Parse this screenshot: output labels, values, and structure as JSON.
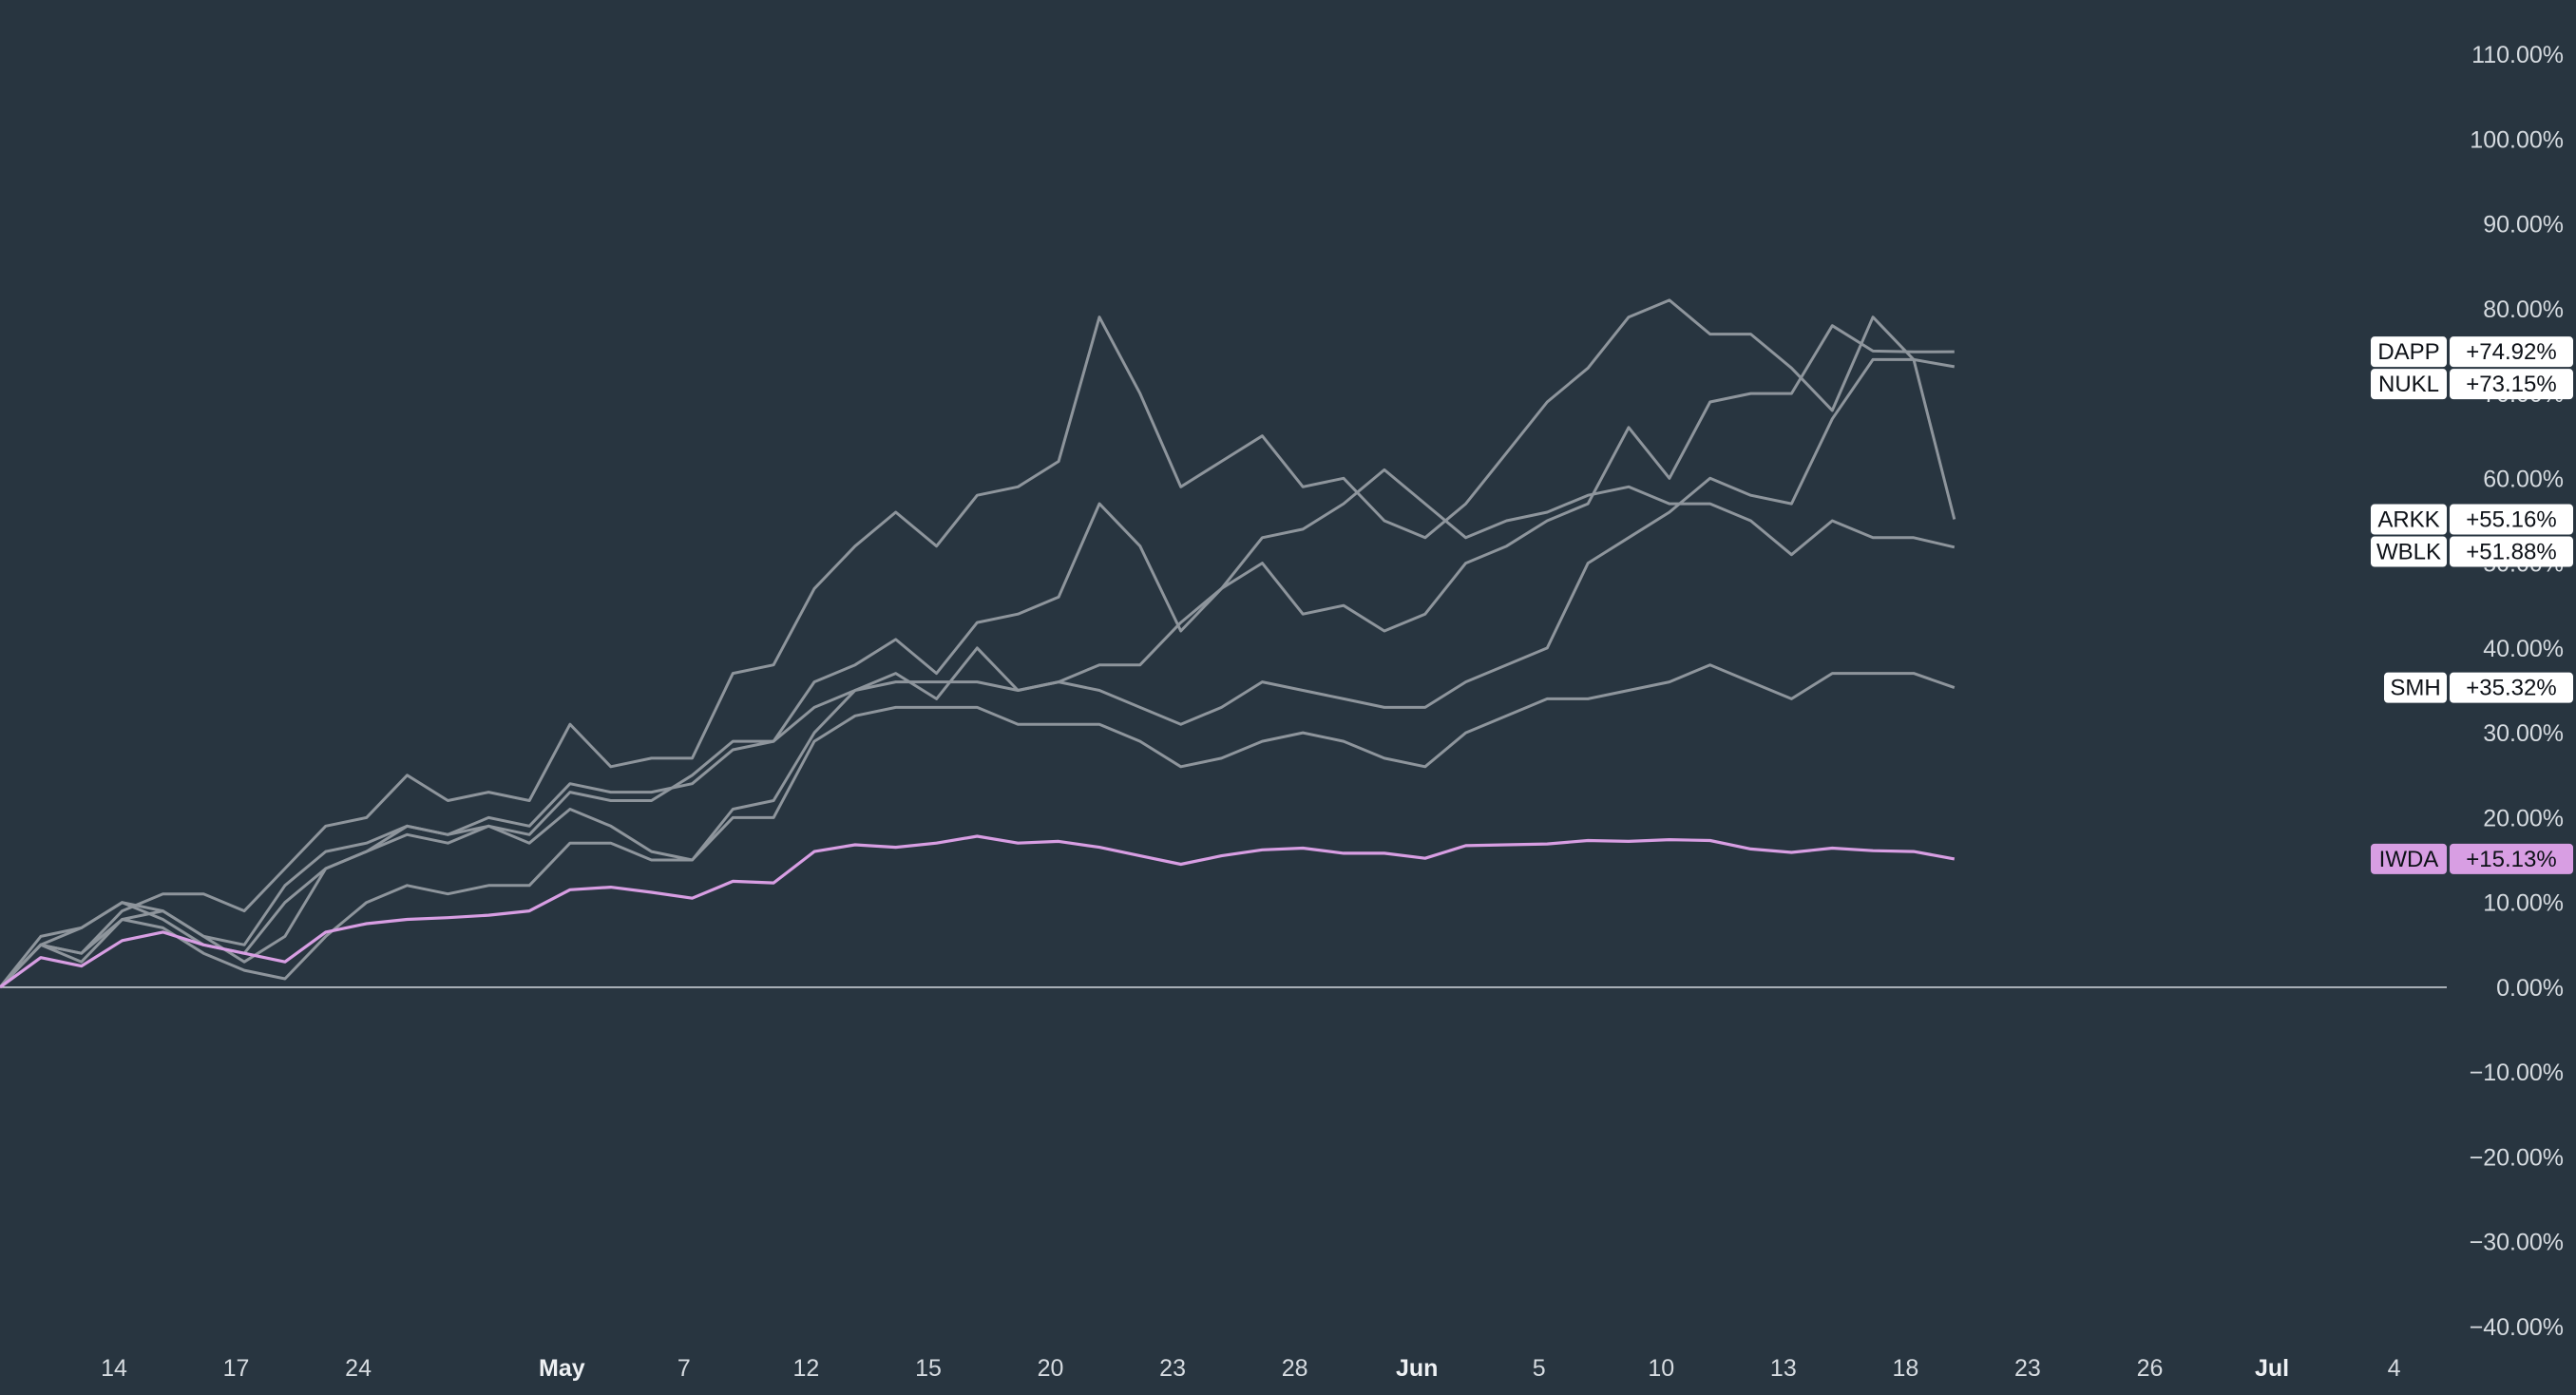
{
  "chart_data": {
    "type": "line",
    "colors": {
      "background": "#283540",
      "neutral_series": "#8e959c",
      "highlight_series": "#d89ee3",
      "zero_line": "#c9ced4",
      "label_fill": "#ffffff",
      "highlight_label_fill": "#d89ee3"
    },
    "ylim": [
      -40,
      110
    ],
    "y_ticks": [
      110,
      100,
      90,
      80,
      70,
      60,
      50,
      40,
      30,
      20,
      10,
      0,
      -10,
      -20,
      -30,
      -40
    ],
    "y_tick_labels": [
      "110.00%",
      "100.00%",
      "90.00%",
      "80.00%",
      "70.00%",
      "60.00%",
      "50.00%",
      "40.00%",
      "30.00%",
      "20.00%",
      "10.00%",
      "0.00%",
      "−10.00%",
      "−20.00%",
      "−30.00%",
      "−40.00%"
    ],
    "x_ticks": [
      {
        "label": "14",
        "pos": 2.8,
        "bold": false
      },
      {
        "label": "17",
        "pos": 5.8,
        "bold": false
      },
      {
        "label": "24",
        "pos": 8.8,
        "bold": false
      },
      {
        "label": "May",
        "pos": 13.8,
        "bold": true
      },
      {
        "label": "7",
        "pos": 16.8,
        "bold": false
      },
      {
        "label": "12",
        "pos": 19.8,
        "bold": false
      },
      {
        "label": "15",
        "pos": 22.8,
        "bold": false
      },
      {
        "label": "20",
        "pos": 25.8,
        "bold": false
      },
      {
        "label": "23",
        "pos": 28.8,
        "bold": false
      },
      {
        "label": "28",
        "pos": 31.8,
        "bold": false
      },
      {
        "label": "Jun",
        "pos": 34.8,
        "bold": true
      },
      {
        "label": "5",
        "pos": 37.8,
        "bold": false
      },
      {
        "label": "10",
        "pos": 40.8,
        "bold": false
      },
      {
        "label": "13",
        "pos": 43.8,
        "bold": false
      },
      {
        "label": "18",
        "pos": 46.8,
        "bold": false
      },
      {
        "label": "23",
        "pos": 49.8,
        "bold": false
      },
      {
        "label": "26",
        "pos": 52.8,
        "bold": false
      },
      {
        "label": "Jul",
        "pos": 55.8,
        "bold": true
      },
      {
        "label": "4",
        "pos": 58.8,
        "bold": false
      }
    ],
    "x_range": [
      0,
      60
    ],
    "series": [
      {
        "name": "DAPP",
        "label": "+74.92%",
        "highlight": false,
        "values": [
          0,
          5,
          7,
          10,
          8,
          5,
          4,
          10,
          14,
          16,
          19,
          18,
          19,
          18,
          23,
          22,
          22,
          25,
          29,
          29,
          36,
          38,
          41,
          37,
          43,
          44,
          46,
          57,
          52,
          42,
          47,
          50,
          44,
          45,
          42,
          44,
          50,
          52,
          55,
          57,
          66,
          60,
          69,
          70,
          70,
          78,
          75,
          74.9,
          74.92
        ]
      },
      {
        "name": "NUKL",
        "label": "+73.15%",
        "highlight": false,
        "values": [
          0,
          6,
          7,
          10,
          9,
          6,
          5,
          12,
          16,
          17,
          19,
          18,
          20,
          19,
          24,
          23,
          23,
          24,
          28,
          29,
          33,
          35,
          36,
          36,
          36,
          35,
          36,
          35,
          33,
          31,
          33,
          36,
          35,
          34,
          33,
          33,
          36,
          38,
          40,
          50,
          53,
          56,
          60,
          58,
          57,
          67,
          74,
          74,
          73.15
        ]
      },
      {
        "name": "ARKK",
        "label": "+55.16%",
        "highlight": false,
        "values": [
          0,
          5,
          4,
          9,
          11,
          11,
          9,
          14,
          19,
          20,
          25,
          22,
          23,
          22,
          31,
          26,
          27,
          27,
          37,
          38,
          47,
          52,
          56,
          52,
          58,
          59,
          62,
          79,
          70,
          59,
          62,
          65,
          59,
          60,
          55,
          53,
          57,
          63,
          69,
          73,
          79,
          81,
          77,
          77,
          73,
          68,
          79,
          74,
          55.16
        ]
      },
      {
        "name": "WBLK",
        "label": "+51.88%",
        "highlight": false,
        "values": [
          0,
          5,
          4,
          8,
          9,
          6,
          3,
          6,
          14,
          16,
          18,
          17,
          19,
          17,
          21,
          19,
          16,
          15,
          21,
          22,
          30,
          35,
          37,
          34,
          40,
          35,
          36,
          38,
          38,
          43,
          47,
          53,
          54,
          57,
          61,
          57,
          53,
          55,
          56,
          58,
          59,
          57,
          57,
          55,
          51,
          55,
          53,
          53,
          51.88
        ]
      },
      {
        "name": "SMH",
        "label": "+35.32%",
        "highlight": false,
        "values": [
          0,
          5,
          3,
          8,
          7,
          4,
          2,
          1,
          6,
          10,
          12,
          11,
          12,
          12,
          17,
          17,
          15,
          15,
          20,
          20,
          29,
          32,
          33,
          33,
          33,
          31,
          31,
          31,
          29,
          26,
          27,
          29,
          30,
          29,
          27,
          26,
          30,
          32,
          34,
          34,
          35,
          36,
          38,
          36,
          34,
          37,
          37,
          37,
          35.32
        ]
      },
      {
        "name": "IWDA",
        "label": "+15.13%",
        "highlight": true,
        "values": [
          0,
          3.5,
          2.5,
          5.5,
          6.5,
          5,
          4,
          3,
          6.5,
          7.5,
          8,
          8.2,
          8.5,
          9,
          11.5,
          11.8,
          11.2,
          10.5,
          12.5,
          12.3,
          16,
          16.8,
          16.5,
          17,
          17.8,
          17,
          17.2,
          16.5,
          15.5,
          14.5,
          15.5,
          16.2,
          16.4,
          15.8,
          15.8,
          15.2,
          16.7,
          16.8,
          16.9,
          17.3,
          17.2,
          17.4,
          17.3,
          16.3,
          15.9,
          16.4,
          16.1,
          16,
          15.13
        ]
      }
    ]
  }
}
